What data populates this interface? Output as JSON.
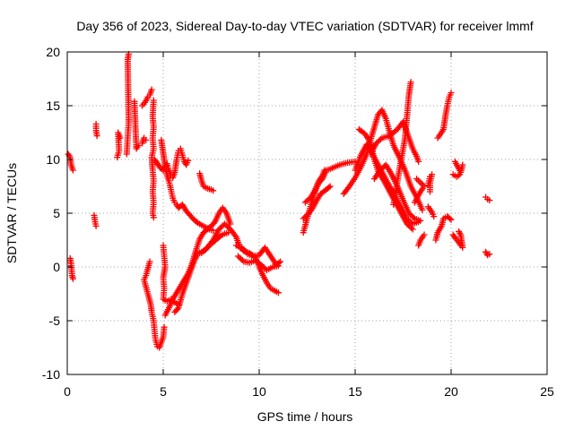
{
  "chart_data": {
    "type": "scatter",
    "title": "Day 356 of 2023, Sidereal Day-to-day VTEC variation (SDTVAR) for receiver lmmf",
    "xlabel": "GPS time / hours",
    "ylabel": "SDTVAR / TECUs",
    "xlim": [
      0,
      25
    ],
    "ylim": [
      -10,
      20
    ],
    "xticks": [
      0,
      5,
      10,
      15,
      20,
      25
    ],
    "yticks": [
      -10,
      -5,
      0,
      5,
      10,
      15,
      20
    ],
    "grid": true,
    "marker": "plus",
    "series_color": "#ff0000",
    "segments": [
      [
        [
          0.05,
          10.5
        ],
        [
          0.15,
          10.2
        ],
        [
          0.2,
          9.5
        ],
        [
          0.3,
          9.0
        ]
      ],
      [
        [
          0.15,
          0.8
        ],
        [
          0.2,
          0.3
        ],
        [
          0.25,
          -0.8
        ],
        [
          0.3,
          -1.1
        ]
      ],
      [
        [
          1.4,
          4.8
        ],
        [
          1.45,
          4.2
        ],
        [
          1.5,
          3.8
        ]
      ],
      [
        [
          1.5,
          13.3
        ],
        [
          1.5,
          12.7
        ],
        [
          1.55,
          12.2
        ]
      ],
      [
        [
          2.6,
          10.2
        ],
        [
          2.7,
          10.8
        ],
        [
          2.65,
          12.5
        ],
        [
          2.75,
          12.0
        ]
      ],
      [
        [
          3.1,
          10.5
        ],
        [
          3.2,
          13.5
        ],
        [
          3.15,
          19.3
        ],
        [
          3.2,
          19.8
        ]
      ],
      [
        [
          3.5,
          15.4
        ],
        [
          3.6,
          11.0
        ],
        [
          3.7,
          11.3
        ]
      ],
      [
        [
          3.9,
          11.5
        ],
        [
          4.0,
          12.0
        ],
        [
          4.1,
          11.8
        ]
      ],
      [
        [
          3.9,
          15.0
        ],
        [
          4.05,
          15.3
        ],
        [
          4.2,
          15.8
        ],
        [
          4.3,
          16.0
        ],
        [
          4.4,
          16.5
        ]
      ],
      [
        [
          4.5,
          15.5
        ],
        [
          4.45,
          14.0
        ],
        [
          4.5,
          13.0
        ],
        [
          4.45,
          12.0
        ],
        [
          4.5,
          11.0
        ],
        [
          4.4,
          10.2
        ],
        [
          4.45,
          9.0
        ],
        [
          4.5,
          8.0
        ],
        [
          4.45,
          7.0
        ],
        [
          4.5,
          6.0
        ],
        [
          4.45,
          5.0
        ],
        [
          4.5,
          4.6
        ]
      ],
      [
        [
          4.55,
          10.0
        ],
        [
          4.7,
          9.6
        ],
        [
          4.85,
          9.2
        ],
        [
          5.0,
          9.0
        ],
        [
          5.1,
          9.3
        ],
        [
          5.2,
          9.6
        ],
        [
          5.3,
          9.0
        ],
        [
          5.4,
          8.5
        ],
        [
          5.5,
          8.3
        ],
        [
          5.6,
          8.8
        ],
        [
          5.7,
          10.0
        ],
        [
          5.8,
          10.8
        ],
        [
          5.9,
          11.0
        ],
        [
          6.0,
          10.4
        ],
        [
          6.1,
          9.8
        ],
        [
          6.2,
          9.5
        ],
        [
          6.3,
          9.9
        ]
      ],
      [
        [
          4.9,
          11.8
        ],
        [
          5.0,
          10.6
        ],
        [
          5.1,
          9.4
        ],
        [
          5.2,
          8.5
        ],
        [
          5.3,
          8.0
        ],
        [
          5.4,
          7.2
        ],
        [
          5.5,
          6.4
        ],
        [
          5.6,
          6.0
        ],
        [
          5.7,
          5.8
        ],
        [
          5.8,
          5.5
        ],
        [
          6.0,
          5.8
        ],
        [
          6.2,
          5.2
        ],
        [
          6.4,
          4.8
        ],
        [
          6.6,
          4.4
        ],
        [
          6.8,
          4.1
        ],
        [
          7.0,
          3.9
        ],
        [
          7.2,
          3.7
        ],
        [
          7.4,
          3.5
        ],
        [
          7.6,
          3.4
        ]
      ],
      [
        [
          4.3,
          0.5
        ],
        [
          4.1,
          -0.8
        ],
        [
          4.0,
          -1.2
        ],
        [
          4.2,
          -2.5
        ],
        [
          4.35,
          -3.5
        ],
        [
          4.4,
          -4.2
        ],
        [
          4.5,
          -5.0
        ],
        [
          4.55,
          -6.0
        ],
        [
          4.6,
          -6.8
        ],
        [
          4.7,
          -7.4
        ],
        [
          4.8,
          -7.5
        ],
        [
          4.9,
          -7.0
        ],
        [
          5.0,
          -6.5
        ],
        [
          5.05,
          -5.6
        ]
      ],
      [
        [
          5.0,
          2.0
        ],
        [
          5.05,
          1.0
        ],
        [
          5.1,
          0.0
        ],
        [
          5.0,
          -1.0
        ],
        [
          5.05,
          -2.0
        ],
        [
          5.0,
          -3.0
        ],
        [
          5.2,
          -3.2
        ],
        [
          5.4,
          -3.0
        ],
        [
          5.6,
          -3.3
        ],
        [
          5.8,
          -3.5
        ]
      ],
      [
        [
          5.1,
          -4.5
        ],
        [
          5.3,
          -3.8
        ],
        [
          5.5,
          -3.0
        ],
        [
          5.7,
          -2.4
        ],
        [
          5.9,
          -1.8
        ],
        [
          6.1,
          -1.2
        ],
        [
          6.3,
          -0.6
        ],
        [
          6.5,
          0.3
        ],
        [
          6.7,
          1.5
        ],
        [
          6.9,
          2.6
        ],
        [
          7.1,
          3.2
        ],
        [
          7.3,
          3.5
        ],
        [
          7.5,
          3.8
        ],
        [
          7.7,
          4.2
        ],
        [
          7.9,
          5.0
        ],
        [
          8.1,
          5.5
        ],
        [
          8.3,
          5.0
        ],
        [
          8.5,
          4.0
        ]
      ],
      [
        [
          5.6,
          -4.2
        ],
        [
          5.8,
          -3.8
        ],
        [
          6.0,
          -2.5
        ],
        [
          6.2,
          -1.5
        ],
        [
          6.4,
          -0.5
        ],
        [
          6.6,
          0.5
        ],
        [
          6.8,
          1.2
        ],
        [
          7.0,
          1.4
        ],
        [
          7.2,
          1.6
        ],
        [
          7.4,
          2.0
        ],
        [
          7.6,
          2.3
        ],
        [
          7.8,
          2.6
        ],
        [
          8.0,
          2.9
        ],
        [
          8.2,
          3.1
        ],
        [
          8.4,
          3.2
        ]
      ],
      [
        [
          6.9,
          8.7
        ],
        [
          7.0,
          8.0
        ],
        [
          7.1,
          7.5
        ],
        [
          7.3,
          7.3
        ],
        [
          7.5,
          7.2
        ],
        [
          7.6,
          7.1
        ]
      ],
      [
        [
          7.0,
          1.3
        ],
        [
          7.3,
          1.8
        ],
        [
          7.6,
          2.5
        ],
        [
          7.9,
          3.5
        ],
        [
          8.2,
          4.0
        ],
        [
          8.5,
          3.5
        ],
        [
          8.8,
          2.8
        ],
        [
          9.0,
          1.8
        ],
        [
          9.2,
          1.5
        ]
      ],
      [
        [
          8.8,
          2.0
        ],
        [
          9.1,
          1.8
        ],
        [
          9.4,
          1.2
        ],
        [
          9.7,
          1.0
        ],
        [
          10.0,
          1.1
        ],
        [
          10.3,
          1.8
        ],
        [
          10.6,
          1.0
        ],
        [
          10.9,
          0.2
        ],
        [
          11.1,
          0.5
        ]
      ],
      [
        [
          8.9,
          1.0
        ],
        [
          9.2,
          0.5
        ],
        [
          9.5,
          0.4
        ],
        [
          9.8,
          0.6
        ],
        [
          10.1,
          0.2
        ],
        [
          10.4,
          -0.3
        ],
        [
          10.7,
          0.0
        ],
        [
          11.0,
          0.1
        ]
      ],
      [
        [
          9.2,
          1.5
        ],
        [
          9.5,
          1.3
        ],
        [
          9.8,
          0.9
        ],
        [
          10.0,
          0.0
        ],
        [
          10.2,
          -0.8
        ],
        [
          10.4,
          -1.5
        ],
        [
          10.6,
          -2.0
        ],
        [
          10.8,
          -2.2
        ],
        [
          11.0,
          -2.4
        ]
      ],
      [
        [
          12.3,
          3.2
        ],
        [
          12.5,
          4.5
        ],
        [
          12.7,
          5.8
        ],
        [
          12.9,
          7.0
        ],
        [
          13.1,
          7.8
        ],
        [
          13.3,
          8.2
        ],
        [
          13.5,
          9.0
        ],
        [
          13.7,
          9.1
        ]
      ],
      [
        [
          12.3,
          4.5
        ],
        [
          12.6,
          5.0
        ],
        [
          12.8,
          5.5
        ],
        [
          13.0,
          6.2
        ],
        [
          13.2,
          6.8
        ],
        [
          13.5,
          7.2
        ],
        [
          13.7,
          7.5
        ]
      ],
      [
        [
          12.4,
          6.0
        ],
        [
          12.7,
          6.5
        ],
        [
          12.9,
          7.1
        ],
        [
          13.1,
          8.0
        ],
        [
          13.3,
          8.5
        ],
        [
          13.4,
          9.0
        ]
      ],
      [
        [
          13.8,
          9.2
        ],
        [
          14.2,
          9.5
        ],
        [
          14.6,
          9.7
        ],
        [
          15.0,
          9.8
        ]
      ],
      [
        [
          14.4,
          6.8
        ],
        [
          14.7,
          7.5
        ],
        [
          15.0,
          8.3
        ],
        [
          15.3,
          9.3
        ],
        [
          15.6,
          10.5
        ],
        [
          15.8,
          11.8
        ],
        [
          16.0,
          13.0
        ],
        [
          16.2,
          14.2
        ],
        [
          16.4,
          14.6
        ],
        [
          16.6,
          13.8
        ],
        [
          16.8,
          12.5
        ],
        [
          17.0,
          11.3
        ],
        [
          17.3,
          10.2
        ],
        [
          17.6,
          9.0
        ],
        [
          17.9,
          7.5
        ],
        [
          18.2,
          6.5
        ],
        [
          18.5,
          5.3
        ]
      ],
      [
        [
          15.2,
          12.8
        ],
        [
          15.5,
          12.4
        ],
        [
          15.8,
          11.6
        ],
        [
          16.0,
          10.0
        ],
        [
          16.2,
          8.9
        ],
        [
          16.5,
          8.0
        ],
        [
          16.8,
          7.0
        ],
        [
          17.1,
          6.0
        ],
        [
          17.4,
          5.0
        ],
        [
          17.7,
          4.0
        ],
        [
          18.0,
          3.5
        ]
      ],
      [
        [
          15.0,
          9.0
        ],
        [
          15.3,
          10.4
        ],
        [
          15.6,
          11.4
        ],
        [
          15.9,
          10.5
        ],
        [
          16.2,
          9.5
        ],
        [
          16.5,
          8.5
        ],
        [
          16.8,
          7.5
        ],
        [
          17.1,
          6.5
        ],
        [
          17.4,
          5.5
        ],
        [
          17.7,
          4.5
        ],
        [
          18.0,
          4.0
        ],
        [
          18.3,
          4.2
        ]
      ],
      [
        [
          16.0,
          8.2
        ],
        [
          16.3,
          9.0
        ],
        [
          16.6,
          9.5
        ],
        [
          16.9,
          8.6
        ],
        [
          17.2,
          7.5
        ],
        [
          17.5,
          6.2
        ],
        [
          17.8,
          5.0
        ],
        [
          18.1,
          4.5
        ],
        [
          18.4,
          4.3
        ]
      ],
      [
        [
          15.8,
          10.5
        ],
        [
          16.1,
          11.5
        ],
        [
          16.4,
          12.0
        ],
        [
          16.8,
          12.2
        ],
        [
          17.2,
          12.8
        ],
        [
          17.5,
          13.5
        ],
        [
          17.8,
          12.0
        ],
        [
          18.0,
          11.0
        ],
        [
          18.2,
          10.3
        ],
        [
          18.3,
          9.8
        ]
      ],
      [
        [
          17.0,
          5.8
        ],
        [
          17.2,
          8.0
        ],
        [
          17.4,
          10.0
        ],
        [
          17.6,
          12.0
        ],
        [
          17.7,
          14.0
        ],
        [
          17.8,
          16.0
        ],
        [
          17.9,
          17.2
        ]
      ],
      [
        [
          18.1,
          6.0
        ],
        [
          18.4,
          7.0
        ],
        [
          18.6,
          7.5
        ],
        [
          18.2,
          8.2
        ]
      ],
      [
        [
          18.6,
          3.0
        ],
        [
          18.4,
          2.5
        ],
        [
          18.3,
          2.0
        ]
      ],
      [
        [
          18.8,
          7.6
        ],
        [
          18.9,
          8.4
        ],
        [
          19.0,
          8.6
        ],
        [
          18.9,
          7.8
        ],
        [
          18.9,
          7.0
        ]
      ],
      [
        [
          18.8,
          5.6
        ],
        [
          19.0,
          5.1
        ],
        [
          19.1,
          4.7
        ]
      ],
      [
        [
          19.2,
          2.5
        ],
        [
          19.3,
          3.2
        ],
        [
          19.5,
          3.8
        ],
        [
          19.6,
          4.5
        ],
        [
          19.8,
          4.7
        ],
        [
          20.0,
          4.4
        ]
      ],
      [
        [
          19.3,
          12.0
        ],
        [
          19.5,
          12.5
        ],
        [
          19.6,
          12.8
        ],
        [
          19.7,
          14.0
        ],
        [
          19.8,
          15.0
        ],
        [
          19.9,
          15.8
        ],
        [
          20.0,
          16.2
        ]
      ],
      [
        [
          20.2,
          9.8
        ],
        [
          20.35,
          9.3
        ],
        [
          20.5,
          8.8
        ],
        [
          20.6,
          9.5
        ]
      ],
      [
        [
          20.1,
          8.6
        ],
        [
          20.3,
          8.4
        ],
        [
          20.45,
          8.6
        ]
      ],
      [
        [
          20.1,
          3.0
        ],
        [
          20.25,
          2.6
        ],
        [
          20.4,
          2.3
        ],
        [
          20.5,
          2.0
        ],
        [
          20.6,
          1.8
        ],
        [
          20.5,
          3.0
        ],
        [
          20.4,
          3.3
        ]
      ],
      [
        [
          21.8,
          6.5
        ],
        [
          21.9,
          6.3
        ],
        [
          22.0,
          6.2
        ]
      ],
      [
        [
          21.8,
          1.4
        ],
        [
          21.9,
          1.1
        ],
        [
          22.0,
          1.2
        ]
      ]
    ]
  }
}
